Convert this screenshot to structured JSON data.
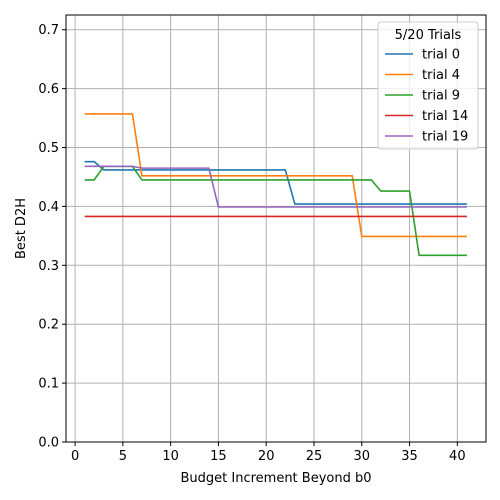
{
  "chart_data": {
    "type": "line",
    "title": "",
    "xlabel": "Budget Increment Beyond b0",
    "ylabel": "Best D2H",
    "xlim": [
      -0.95,
      43
    ],
    "ylim": [
      0.0,
      0.725
    ],
    "xticks": [
      0,
      5,
      10,
      15,
      20,
      25,
      30,
      35,
      40
    ],
    "yticks": [
      0.0,
      0.1,
      0.2,
      0.3,
      0.4,
      0.5,
      0.6,
      0.7
    ],
    "xtick_labels": [
      "0",
      "5",
      "10",
      "15",
      "20",
      "25",
      "30",
      "35",
      "40"
    ],
    "ytick_labels": [
      "0.0",
      "0.1",
      "0.2",
      "0.3",
      "0.4",
      "0.5",
      "0.6",
      "0.7"
    ],
    "grid": true,
    "legend_placement": "top-right",
    "legend_title": "5/20 Trials",
    "series": [
      {
        "name": "trial 0",
        "color": "#1f77b4",
        "points": [
          [
            1,
            0.476
          ],
          [
            2,
            0.476
          ],
          [
            3,
            0.462
          ],
          [
            22,
            0.462
          ],
          [
            23,
            0.404
          ],
          [
            41,
            0.404
          ]
        ]
      },
      {
        "name": "trial 4",
        "color": "#ff7f0e",
        "points": [
          [
            1,
            0.557
          ],
          [
            6,
            0.557
          ],
          [
            7,
            0.452
          ],
          [
            29,
            0.452
          ],
          [
            30,
            0.349
          ],
          [
            41,
            0.349
          ]
        ]
      },
      {
        "name": "trial 9",
        "color": "#2ca02c",
        "points": [
          [
            1,
            0.445
          ],
          [
            2,
            0.445
          ],
          [
            3,
            0.468
          ],
          [
            6,
            0.468
          ],
          [
            7,
            0.445
          ],
          [
            31,
            0.445
          ],
          [
            32,
            0.426
          ],
          [
            35,
            0.426
          ],
          [
            36,
            0.317
          ],
          [
            41,
            0.317
          ]
        ]
      },
      {
        "name": "trial 14",
        "color": "#d62728",
        "points": [
          [
            1,
            0.383
          ],
          [
            41,
            0.383
          ]
        ]
      },
      {
        "name": "trial 19",
        "color": "#9467bd",
        "points": [
          [
            1,
            0.468
          ],
          [
            6,
            0.468
          ],
          [
            7,
            0.465
          ],
          [
            14,
            0.465
          ],
          [
            15,
            0.399
          ],
          [
            41,
            0.399
          ]
        ]
      }
    ]
  }
}
